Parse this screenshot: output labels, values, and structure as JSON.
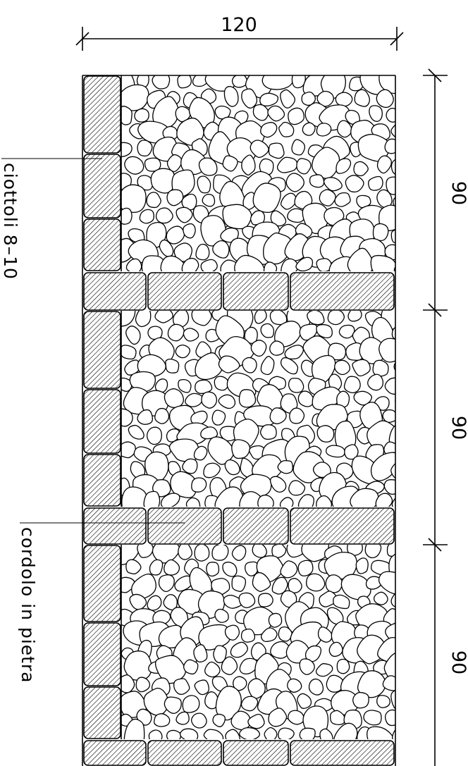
{
  "drawing": {
    "top_dimension": "120",
    "right_dimensions": [
      "90",
      "90",
      "90"
    ],
    "labels": {
      "pebbles": "ciottoli 8–10",
      "curb": "cordolo in pietra"
    }
  },
  "colors": {
    "line": "#000000",
    "background": "#ffffff"
  }
}
